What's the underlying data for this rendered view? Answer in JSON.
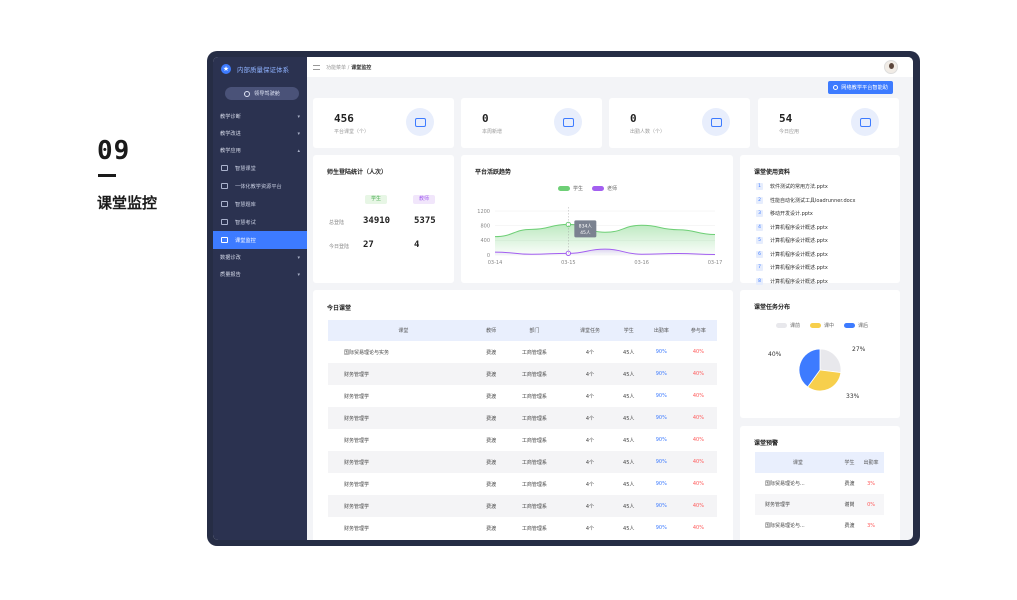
{
  "slide": {
    "number": "09",
    "title": "课堂监控"
  },
  "brand": {
    "name": "内部质量保证体系"
  },
  "sidebar": {
    "guide_label": "领导驾驶舱",
    "groups": [
      {
        "label": "教学诊断",
        "chev": "▾"
      },
      {
        "label": "教学改进",
        "chev": "▾"
      },
      {
        "label": "教学应用",
        "chev": "▴"
      }
    ],
    "items": [
      {
        "label": "智慧课堂"
      },
      {
        "label": "一体化教学资源平台"
      },
      {
        "label": "智慧题库"
      },
      {
        "label": "智慧考试"
      },
      {
        "label": "课堂监控"
      }
    ],
    "bottom_groups": [
      {
        "label": "数据诊改",
        "chev": "▾"
      },
      {
        "label": "质量报告",
        "chev": "▾"
      }
    ]
  },
  "topbar": {
    "breadcrumb_parent": "功能菜单 /",
    "breadcrumb_current": "课堂监控"
  },
  "assist_button": "网络教学平台智能助",
  "stats": [
    {
      "value": "456",
      "label": "平台课堂（个）"
    },
    {
      "value": "0",
      "label": "本周新增"
    },
    {
      "value": "0",
      "label": "出勤人数（个）"
    },
    {
      "value": "54",
      "label": "今日应用"
    }
  ],
  "login_stats": {
    "title": "师生登陆统计（人次）",
    "student_label": "学生",
    "teacher_label": "教师",
    "rows": [
      {
        "label": "总登陆",
        "student": "34910",
        "teacher": "5375"
      },
      {
        "label": "今日登陆",
        "student": "27",
        "teacher": "4"
      }
    ]
  },
  "trend": {
    "title": "平台活跃趋势",
    "tooltip_line1": "834人",
    "tooltip_line2": "45人"
  },
  "chart_data": {
    "type": "area",
    "x": [
      "03-14",
      "03-15",
      "03-16",
      "03-17"
    ],
    "yticks": [
      "1200",
      "800",
      "400",
      "0"
    ],
    "ylim": [
      0,
      1200
    ],
    "series": [
      {
        "name": "学生",
        "color": "#6ecf76",
        "points": [
          [
            0,
            500
          ],
          [
            0.5,
            700
          ],
          [
            1,
            834
          ],
          [
            1.5,
            620
          ],
          [
            2,
            810
          ],
          [
            2.5,
            690
          ],
          [
            3,
            560
          ]
        ]
      },
      {
        "name": "老师",
        "color": "#a35ff0",
        "points": [
          [
            0,
            80
          ],
          [
            0.5,
            20
          ],
          [
            1,
            45
          ],
          [
            1.5,
            160
          ],
          [
            2,
            20
          ],
          [
            2.5,
            40
          ],
          [
            3,
            15
          ]
        ]
      }
    ]
  },
  "resources": {
    "title": "课堂使用资料",
    "items": [
      "软件测试的常用方法.pptx",
      "性能自动化测试工具loadrunner.docx",
      "移动开发设计.pptx",
      "计算机程序设计概述.pptx",
      "计算机程序设计概述.pptx",
      "计算机程序设计概述.pptx",
      "计算机程序设计概述.pptx",
      "计算机程序设计概述.pptx"
    ]
  },
  "today": {
    "title": "今日课堂",
    "headers": [
      "课堂",
      "教师",
      "部门",
      "课堂任务",
      "学生",
      "出勤率",
      "参与率"
    ],
    "rows": [
      [
        "国际贸易理论与实务",
        "费渡",
        "工商管理系",
        "4个",
        "45人",
        "90%",
        "40%"
      ],
      [
        "财务管理学",
        "费渡",
        "工商管理系",
        "4个",
        "45人",
        "90%",
        "40%"
      ],
      [
        "财务管理学",
        "费渡",
        "工商管理系",
        "4个",
        "45人",
        "90%",
        "40%"
      ],
      [
        "财务管理学",
        "费渡",
        "工商管理系",
        "4个",
        "45人",
        "90%",
        "40%"
      ],
      [
        "财务管理学",
        "费渡",
        "工商管理系",
        "4个",
        "45人",
        "90%",
        "40%"
      ],
      [
        "财务管理学",
        "费渡",
        "工商管理系",
        "4个",
        "45人",
        "90%",
        "40%"
      ],
      [
        "财务管理学",
        "费渡",
        "工商管理系",
        "4个",
        "45人",
        "90%",
        "40%"
      ],
      [
        "财务管理学",
        "费渡",
        "工商管理系",
        "4个",
        "45人",
        "90%",
        "40%"
      ],
      [
        "财务管理学",
        "费渡",
        "工商管理系",
        "4个",
        "45人",
        "90%",
        "40%"
      ]
    ]
  },
  "task_dist": {
    "title": "课堂任务分布",
    "legend": [
      {
        "label": "课前",
        "color": "#e8e8ec"
      },
      {
        "label": "课中",
        "color": "#f7cf4c"
      },
      {
        "label": "课后",
        "color": "#3d7bff"
      }
    ],
    "slices": [
      {
        "label": "27%",
        "value": 27,
        "color": "#e8e8ec"
      },
      {
        "label": "33%",
        "value": 33,
        "color": "#f7cf4c"
      },
      {
        "label": "40%",
        "value": 40,
        "color": "#3d7bff"
      }
    ]
  },
  "warning": {
    "title": "课堂预警",
    "headers": [
      "课堂",
      "学生",
      "出勤率"
    ],
    "rows": [
      [
        "国际贸易理论与...",
        "费渡",
        "3%"
      ],
      [
        "财务管理学",
        "谢岗",
        "0%"
      ],
      [
        "国际贸易理论与...",
        "费渡",
        "3%"
      ]
    ]
  }
}
